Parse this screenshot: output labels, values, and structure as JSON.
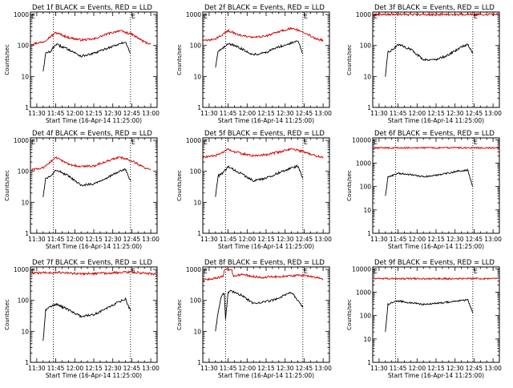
{
  "figure": {
    "legend_note": "BLACK = Events, RED = LLD",
    "colors": {
      "events": "#000000",
      "lld": "#d00000",
      "axes": "#000000",
      "background": "#ffffff"
    }
  },
  "chart_data": [
    {
      "type": "line",
      "title": "Det 1f  BLACK = Events, RED = LLD",
      "ylabel": "Counts/sec",
      "xlabel": "Start Time (16-Apr-14 11:25:00)",
      "y_scale": "log",
      "ylim": [
        1,
        1200
      ],
      "yticks": [
        1,
        10,
        100,
        1000
      ],
      "xlim": [
        "11:25",
        "13:05"
      ],
      "xticks": [
        "11:30",
        "11:45",
        "12:00",
        "12:15",
        "12:30",
        "12:45",
        "13:00"
      ],
      "vlines": [
        "11:43",
        "12:44"
      ],
      "vline_labels": [
        {
          "time": "11:25",
          "text": "E"
        },
        {
          "time": "12:44",
          "text": "E"
        }
      ],
      "series": [
        {
          "color": "#d00000",
          "x": [
            "11:25",
            "11:35",
            "11:45",
            "11:55",
            "12:05",
            "12:15",
            "12:25",
            "12:35",
            "12:45",
            "12:55",
            "13:00"
          ],
          "y": [
            110,
            130,
            260,
            180,
            150,
            160,
            230,
            300,
            230,
            130,
            110
          ]
        },
        {
          "color": "#000000",
          "x": [
            "11:35",
            "11:37",
            "11:41",
            "11:45",
            "11:55",
            "12:05",
            "12:15",
            "12:25",
            "12:35",
            "12:40",
            "12:44"
          ],
          "y": [
            15,
            55,
            65,
            110,
            75,
            45,
            55,
            80,
            110,
            130,
            55
          ]
        }
      ]
    },
    {
      "type": "line",
      "title": "Det 2f  BLACK = Events, RED = LLD",
      "ylabel": "Counts/sec",
      "xlabel": "Start Time (16-Apr-14 11:25:00)",
      "y_scale": "log",
      "ylim": [
        1,
        1200
      ],
      "yticks": [
        1,
        10,
        100,
        1000
      ],
      "xlim": [
        "11:25",
        "13:05"
      ],
      "xticks": [
        "11:30",
        "11:45",
        "12:00",
        "12:15",
        "12:30",
        "12:45",
        "13:00"
      ],
      "vlines": [
        "11:43",
        "12:44"
      ],
      "vline_labels": [
        {
          "time": "11:25",
          "text": "E"
        },
        {
          "time": "12:44",
          "text": "E"
        }
      ],
      "series": [
        {
          "color": "#d00000",
          "x": [
            "11:25",
            "11:35",
            "11:45",
            "11:55",
            "12:05",
            "12:15",
            "12:25",
            "12:35",
            "12:45",
            "12:55",
            "13:00"
          ],
          "y": [
            140,
            160,
            300,
            210,
            180,
            200,
            280,
            360,
            270,
            160,
            150
          ]
        },
        {
          "color": "#000000",
          "x": [
            "11:35",
            "11:37",
            "11:41",
            "11:45",
            "11:55",
            "12:05",
            "12:15",
            "12:25",
            "12:35",
            "12:40",
            "12:44"
          ],
          "y": [
            20,
            65,
            80,
            120,
            80,
            50,
            60,
            90,
            120,
            140,
            55
          ]
        }
      ]
    },
    {
      "type": "line",
      "title": "Det 3f  BLACK = Events, RED = LLD",
      "ylabel": "Counts/sec",
      "xlabel": "Start Time (16-Apr-14 11:25:00)",
      "y_scale": "log",
      "ylim": [
        1,
        1200
      ],
      "yticks": [
        1,
        10,
        100,
        1000
      ],
      "xlim": [
        "11:25",
        "13:05"
      ],
      "xticks": [
        "11:30",
        "11:45",
        "12:00",
        "12:15",
        "12:30",
        "12:45",
        "13:00"
      ],
      "vlines": [
        "11:43",
        "12:44"
      ],
      "vline_labels": [
        {
          "time": "11:25",
          "text": "E"
        },
        {
          "time": "12:44",
          "text": "E"
        }
      ],
      "series": [
        {
          "color": "#d00000",
          "x": [
            "11:25",
            "13:05"
          ],
          "y": [
            1000,
            1000
          ]
        },
        {
          "color": "#000000",
          "x": [
            "11:35",
            "11:37",
            "11:41",
            "11:45",
            "11:55",
            "12:05",
            "12:15",
            "12:25",
            "12:35",
            "12:40",
            "12:44"
          ],
          "y": [
            10,
            60,
            75,
            110,
            75,
            35,
            35,
            50,
            90,
            110,
            55
          ]
        }
      ]
    },
    {
      "type": "line",
      "title": "Det 4f  BLACK = Events, RED = LLD",
      "ylabel": "Counts/sec",
      "xlabel": "Start Time (16-Apr-14 11:25:00)",
      "y_scale": "log",
      "ylim": [
        1,
        1200
      ],
      "yticks": [
        1,
        10,
        100,
        1000
      ],
      "xlim": [
        "11:25",
        "13:05"
      ],
      "xticks": [
        "11:30",
        "11:45",
        "12:00",
        "12:15",
        "12:30",
        "12:45",
        "13:00"
      ],
      "vlines": [
        "11:43",
        "12:44"
      ],
      "vline_labels": [
        {
          "time": "11:25",
          "text": "E"
        },
        {
          "time": "12:44",
          "text": "E"
        }
      ],
      "series": [
        {
          "color": "#d00000",
          "x": [
            "11:25",
            "11:35",
            "11:45",
            "11:55",
            "12:05",
            "12:15",
            "12:25",
            "12:35",
            "12:45",
            "12:55",
            "13:00"
          ],
          "y": [
            110,
            130,
            280,
            170,
            140,
            150,
            210,
            290,
            220,
            130,
            110
          ]
        },
        {
          "color": "#000000",
          "x": [
            "11:35",
            "11:37",
            "11:41",
            "11:45",
            "11:55",
            "12:05",
            "12:15",
            "12:25",
            "12:35",
            "12:40",
            "12:44"
          ],
          "y": [
            15,
            60,
            70,
            115,
            70,
            35,
            40,
            60,
            100,
            115,
            50
          ]
        }
      ]
    },
    {
      "type": "line",
      "title": "Det 5f  BLACK = Events, RED = LLD",
      "ylabel": "Counts/sec",
      "xlabel": "Start Time (16-Apr-14 11:25:00)",
      "y_scale": "log",
      "ylim": [
        1,
        1200
      ],
      "yticks": [
        1,
        10,
        100,
        1000
      ],
      "xlim": [
        "11:25",
        "13:05"
      ],
      "xticks": [
        "11:30",
        "11:45",
        "12:00",
        "12:15",
        "12:30",
        "12:45",
        "13:00"
      ],
      "vlines": [
        "11:43",
        "12:44"
      ],
      "vline_labels": [
        {
          "time": "11:25",
          "text": "E"
        },
        {
          "time": "12:44",
          "text": "E"
        }
      ],
      "series": [
        {
          "color": "#d00000",
          "x": [
            "11:25",
            "11:35",
            "11:45",
            "11:55",
            "12:05",
            "12:15",
            "12:25",
            "12:35",
            "12:45",
            "12:55",
            "13:00"
          ],
          "y": [
            280,
            320,
            500,
            380,
            320,
            340,
            420,
            540,
            420,
            310,
            290
          ]
        },
        {
          "color": "#000000",
          "x": [
            "11:35",
            "11:37",
            "11:41",
            "11:45",
            "11:55",
            "12:05",
            "12:15",
            "12:25",
            "12:35",
            "12:40",
            "12:44"
          ],
          "y": [
            15,
            70,
            90,
            140,
            85,
            50,
            60,
            90,
            130,
            150,
            60
          ]
        }
      ]
    },
    {
      "type": "line",
      "title": "Det 6f  BLACK = Events, RED = LLD",
      "ylabel": "Counts/sec",
      "xlabel": "Start Time (16-Apr-14 11:25:00)",
      "y_scale": "log",
      "ylim": [
        1,
        12000
      ],
      "yticks": [
        1,
        10,
        100,
        1000,
        10000
      ],
      "xlim": [
        "11:25",
        "13:05"
      ],
      "xticks": [
        "11:30",
        "11:45",
        "12:00",
        "12:15",
        "12:30",
        "12:45",
        "13:00"
      ],
      "vlines": [
        "11:43",
        "12:44"
      ],
      "vline_labels": [
        {
          "time": "11:25",
          "text": "E"
        },
        {
          "time": "12:44",
          "text": "E"
        }
      ],
      "series": [
        {
          "color": "#d00000",
          "x": [
            "11:25",
            "13:05"
          ],
          "y": [
            4500,
            4500
          ]
        },
        {
          "color": "#000000",
          "x": [
            "11:35",
            "11:37",
            "11:41",
            "11:45",
            "11:55",
            "12:05",
            "12:15",
            "12:25",
            "12:35",
            "12:40",
            "12:44"
          ],
          "y": [
            40,
            250,
            300,
            370,
            320,
            260,
            300,
            380,
            480,
            500,
            100
          ]
        }
      ]
    },
    {
      "type": "line",
      "title": "Det 7f  BLACK = Events, RED = LLD",
      "ylabel": "Counts/sec",
      "xlabel": "Start Time (16-Apr-14 11:25:00)",
      "y_scale": "log",
      "ylim": [
        1,
        1200
      ],
      "yticks": [
        1,
        10,
        100,
        1000
      ],
      "xlim": [
        "11:25",
        "13:05"
      ],
      "xticks": [
        "11:30",
        "11:45",
        "12:00",
        "12:15",
        "12:30",
        "12:45",
        "13:00"
      ],
      "vlines": [
        "11:43",
        "12:44"
      ],
      "vline_labels": [
        {
          "time": "11:25",
          "text": "E"
        },
        {
          "time": "12:44",
          "text": "E"
        }
      ],
      "series": [
        {
          "color": "#d00000",
          "x": [
            "11:25",
            "11:45",
            "12:05",
            "12:25",
            "12:45",
            "13:05"
          ],
          "y": [
            750,
            800,
            720,
            760,
            820,
            700
          ]
        },
        {
          "color": "#000000",
          "x": [
            "11:35",
            "11:37",
            "11:41",
            "11:45",
            "11:55",
            "12:05",
            "12:15",
            "12:25",
            "12:35",
            "12:40",
            "12:44"
          ],
          "y": [
            5,
            50,
            65,
            75,
            50,
            30,
            35,
            55,
            90,
            110,
            45
          ]
        }
      ]
    },
    {
      "type": "line",
      "title": "Det 8f  BLACK = Events, RED = LLD",
      "ylabel": "Counts/sec",
      "xlabel": "Start Time (16-Apr-14 11:25:00)",
      "y_scale": "log",
      "ylim": [
        1,
        1200
      ],
      "yticks": [
        1,
        10,
        100,
        1000
      ],
      "xlim": [
        "11:25",
        "13:05"
      ],
      "xticks": [
        "11:30",
        "11:45",
        "12:00",
        "12:15",
        "12:30",
        "12:45",
        "13:00"
      ],
      "vlines": [
        "11:43",
        "12:44"
      ],
      "vline_labels": [
        {
          "time": "11:25",
          "text": "E"
        },
        {
          "time": "12:44",
          "text": "E"
        }
      ],
      "series": [
        {
          "color": "#d00000",
          "x": [
            "11:25",
            "11:38",
            "11:41",
            "11:42",
            "11:48",
            "11:49",
            "11:55",
            "12:10",
            "12:30",
            "12:45",
            "13:00"
          ],
          "y": [
            450,
            550,
            600,
            1000,
            1000,
            600,
            700,
            550,
            600,
            650,
            480
          ]
        },
        {
          "color": "#000000",
          "x": [
            "11:35",
            "11:37",
            "11:40",
            "11:42",
            "11:43",
            "11:45",
            "11:47",
            "11:55",
            "12:05",
            "12:20",
            "12:35",
            "12:44"
          ],
          "y": [
            10,
            40,
            150,
            170,
            25,
            180,
            200,
            150,
            80,
            100,
            180,
            60
          ]
        }
      ]
    },
    {
      "type": "line",
      "title": "Det 9f  BLACK = Events, RED = LLD",
      "ylabel": "Counts/sec",
      "xlabel": "Start Time (16-Apr-14 11:25:00)",
      "y_scale": "log",
      "ylim": [
        1,
        12000
      ],
      "yticks": [
        1,
        10,
        100,
        1000,
        10000
      ],
      "xlim": [
        "11:25",
        "13:05"
      ],
      "xticks": [
        "11:30",
        "11:45",
        "12:00",
        "12:15",
        "12:30",
        "12:45",
        "13:00"
      ],
      "vlines": [
        "11:43",
        "12:44"
      ],
      "vline_labels": [
        {
          "time": "11:25",
          "text": "E"
        },
        {
          "time": "12:44",
          "text": "E"
        }
      ],
      "series": [
        {
          "color": "#d00000",
          "x": [
            "11:25",
            "13:05"
          ],
          "y": [
            3800,
            3800
          ]
        },
        {
          "color": "#000000",
          "x": [
            "11:35",
            "11:37",
            "11:41",
            "11:45",
            "11:55",
            "12:05",
            "12:15",
            "12:25",
            "12:35",
            "12:40",
            "12:44"
          ],
          "y": [
            20,
            300,
            380,
            420,
            350,
            300,
            330,
            380,
            440,
            470,
            130
          ]
        }
      ]
    }
  ]
}
